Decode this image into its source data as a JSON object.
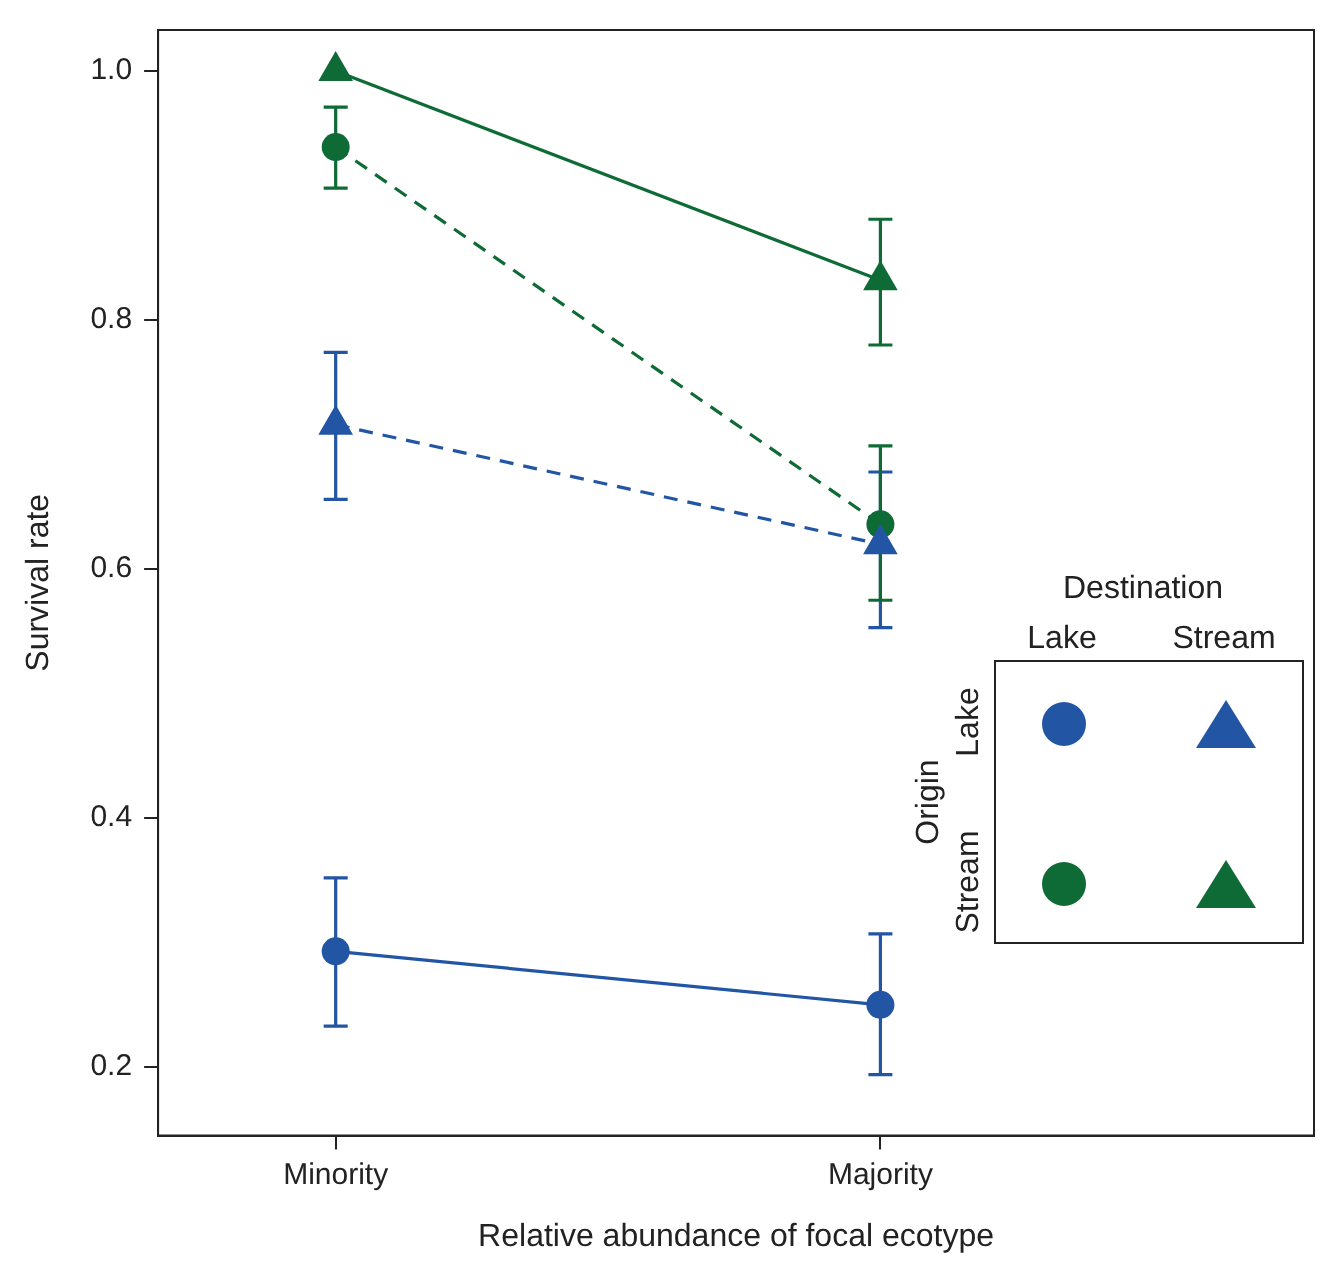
{
  "chart_data": {
    "type": "line",
    "xlabel": "Relative abundance of focal ecotype",
    "ylabel": "Survival rate",
    "categories": [
      "Minority",
      "Majority"
    ],
    "ylim": [
      0.145,
      1.033
    ],
    "yticks": [
      {
        "value": 0.2,
        "label": "0.2"
      },
      {
        "value": 0.4,
        "label": "0.4"
      },
      {
        "value": 0.6,
        "label": "0.6"
      },
      {
        "value": 0.8,
        "label": "0.8"
      },
      {
        "value": 1.0,
        "label": "1.0"
      }
    ],
    "grid": false,
    "legend_title": "Destination",
    "annotations": [
      "Lake",
      "Stream",
      "Origin",
      "Lake",
      "Stream"
    ],
    "series": [
      {
        "color": "#2255a4",
        "marker": "circle",
        "line_style": "solid",
        "values": [
          0.293,
          0.25
        ],
        "errors": [
          [
            0.233,
            0.352
          ],
          [
            0.194,
            0.307
          ]
        ]
      },
      {
        "color": "#2255a4",
        "marker": "triangle",
        "line_style": "dashed",
        "values": [
          0.716,
          0.62
        ],
        "errors": [
          [
            0.656,
            0.774
          ],
          [
            0.553,
            0.678
          ]
        ]
      },
      {
        "color": "#0e6b35",
        "marker": "circle",
        "line_style": "dashed",
        "values": [
          0.939,
          0.636
        ],
        "errors": [
          [
            0.906,
            0.971
          ],
          [
            0.575,
            0.699
          ]
        ]
      },
      {
        "color": "#0e6b35",
        "marker": "triangle",
        "line_style": "solid",
        "values": [
          1.0,
          0.832
        ],
        "errors": [
          null,
          [
            0.78,
            0.881
          ]
        ]
      }
    ]
  }
}
